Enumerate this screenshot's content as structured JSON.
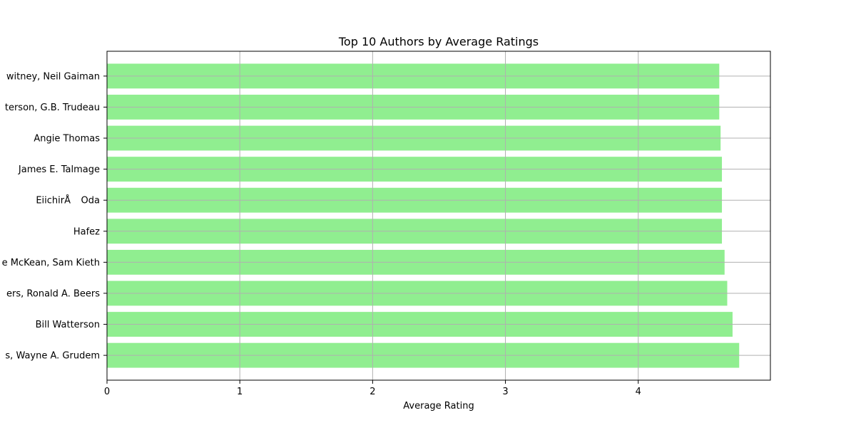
{
  "chart_data": {
    "type": "bar",
    "orientation": "horizontal",
    "title": "Top 10 Authors by Average Ratings",
    "xlabel": "Average Rating",
    "ylabel": "",
    "categories": [
      "Wayne A. Grudem",
      "Bill Watterson",
      "Ronald A. Beers",
      "Sam Kieth",
      "Hafez",
      "EiichirÅ Oda",
      "James E. Talmage",
      "Angie Thomas",
      "G.B. Trudeau",
      "Neil Gaiman"
    ],
    "category_labels": [
      "s, Wayne A. Grudem",
      "Bill Watterson",
      "ers, Ronald A. Beers",
      "e McKean, Sam Kieth",
      "Hafez",
      "EiichirÅ Oda",
      "James E. Talmage",
      "Angie Thomas",
      "terson, G.B. Trudeau",
      "witney, Neil Gaiman"
    ],
    "values": [
      4.76,
      4.71,
      4.67,
      4.65,
      4.63,
      4.63,
      4.63,
      4.62,
      4.61,
      4.61
    ],
    "xlim": [
      0,
      4.995
    ],
    "xticks": [
      0,
      1,
      2,
      3,
      4
    ],
    "bar_color": "#90ee90",
    "grid": true,
    "legend": "none"
  }
}
